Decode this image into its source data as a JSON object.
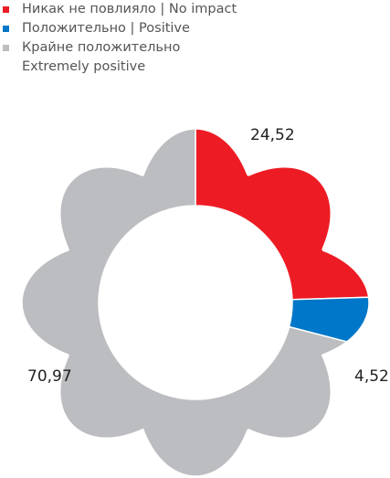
{
  "chart_data": {
    "type": "pie",
    "categories": [
      "Никак не повлияло  |  No impact",
      "Положительно  |  Positive",
      "Крайне положительно\nExtremely positive"
    ],
    "values": [
      24.52,
      4.52,
      70.97
    ],
    "value_labels": [
      "24,52",
      "4,52",
      "70,97"
    ],
    "colors": [
      "#ed1c24",
      "#0077c8",
      "#bcbdc0"
    ]
  }
}
